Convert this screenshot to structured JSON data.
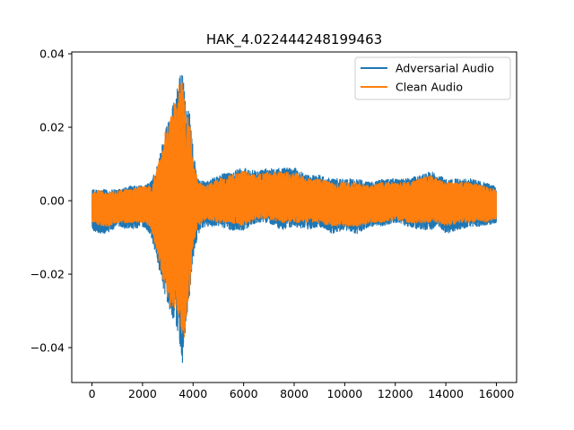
{
  "chart_data": {
    "type": "line",
    "title": "HAK_4.022444248199463",
    "xlabel": "",
    "ylabel": "",
    "xlim": [
      -800,
      16800
    ],
    "ylim": [
      -0.0495,
      0.0405
    ],
    "x_ticks": [
      0,
      2000,
      4000,
      6000,
      8000,
      10000,
      12000,
      14000,
      16000
    ],
    "x_tick_labels": [
      "0",
      "2000",
      "4000",
      "6000",
      "8000",
      "10000",
      "12000",
      "14000",
      "16000"
    ],
    "y_ticks": [
      -0.04,
      -0.02,
      0.0,
      0.02,
      0.04
    ],
    "y_tick_labels": [
      "−0.04",
      "−0.02",
      "0.00",
      "0.02",
      "0.04"
    ],
    "grid": false,
    "legend_position": "top-right",
    "n_samples": 16000,
    "series": [
      {
        "name": "Adversarial Audio",
        "color": "#1f77b4",
        "envelope": {
          "x": [
            0,
            300,
            600,
            1000,
            1500,
            2000,
            2300,
            2500,
            2700,
            2900,
            3100,
            3300,
            3500,
            3600,
            3700,
            3900,
            4000,
            4200,
            4500,
            5000,
            5500,
            6000,
            6500,
            7000,
            7500,
            8000,
            8500,
            9000,
            9500,
            10000,
            10500,
            11000,
            11500,
            12000,
            12500,
            13000,
            13400,
            13700,
            14000,
            14500,
            15000,
            15500,
            15999
          ],
          "upper": [
            0.003,
            0.003,
            0.003,
            0.003,
            0.004,
            0.004,
            0.005,
            0.008,
            0.013,
            0.02,
            0.024,
            0.028,
            0.035,
            0.036,
            0.026,
            0.024,
            0.014,
            0.006,
            0.005,
            0.007,
            0.008,
            0.009,
            0.008,
            0.009,
            0.009,
            0.009,
            0.007,
            0.007,
            0.006,
            0.006,
            0.006,
            0.005,
            0.006,
            0.006,
            0.006,
            0.007,
            0.008,
            0.007,
            0.006,
            0.006,
            0.006,
            0.005,
            0.004
          ],
          "lower": [
            -0.008,
            -0.009,
            -0.009,
            -0.007,
            -0.008,
            -0.007,
            -0.009,
            -0.014,
            -0.02,
            -0.026,
            -0.03,
            -0.034,
            -0.04,
            -0.046,
            -0.037,
            -0.024,
            -0.016,
            -0.009,
            -0.007,
            -0.007,
            -0.008,
            -0.008,
            -0.006,
            -0.006,
            -0.008,
            -0.007,
            -0.008,
            -0.007,
            -0.009,
            -0.008,
            -0.009,
            -0.007,
            -0.007,
            -0.006,
            -0.007,
            -0.008,
            -0.008,
            -0.007,
            -0.009,
            -0.008,
            -0.007,
            -0.007,
            -0.006
          ]
        }
      },
      {
        "name": "Clean Audio",
        "color": "#ff7f0e",
        "envelope": {
          "x": [
            0,
            300,
            600,
            1000,
            1500,
            2000,
            2300,
            2500,
            2700,
            2900,
            3100,
            3300,
            3500,
            3600,
            3700,
            3900,
            4000,
            4200,
            4500,
            5000,
            5500,
            6000,
            6500,
            7000,
            7500,
            8000,
            8500,
            9000,
            9500,
            10000,
            10500,
            11000,
            11500,
            12000,
            12500,
            13000,
            13400,
            13700,
            14000,
            14500,
            15000,
            15500,
            15999
          ],
          "upper": [
            0.002,
            0.003,
            0.002,
            0.003,
            0.003,
            0.004,
            0.004,
            0.007,
            0.012,
            0.019,
            0.023,
            0.027,
            0.034,
            0.0365,
            0.025,
            0.02,
            0.012,
            0.005,
            0.004,
            0.006,
            0.007,
            0.008,
            0.007,
            0.008,
            0.008,
            0.008,
            0.006,
            0.006,
            0.005,
            0.005,
            0.005,
            0.004,
            0.005,
            0.005,
            0.005,
            0.006,
            0.007,
            0.006,
            0.005,
            0.005,
            0.005,
            0.004,
            0.003
          ],
          "lower": [
            -0.006,
            -0.007,
            -0.007,
            -0.006,
            -0.006,
            -0.006,
            -0.007,
            -0.012,
            -0.018,
            -0.024,
            -0.029,
            -0.03,
            -0.033,
            -0.04,
            -0.036,
            -0.022,
            -0.013,
            -0.007,
            -0.005,
            -0.006,
            -0.006,
            -0.007,
            -0.005,
            -0.005,
            -0.006,
            -0.006,
            -0.006,
            -0.006,
            -0.007,
            -0.007,
            -0.007,
            -0.006,
            -0.006,
            -0.005,
            -0.006,
            -0.006,
            -0.006,
            -0.006,
            -0.007,
            -0.006,
            -0.006,
            -0.006,
            -0.005
          ]
        }
      }
    ]
  }
}
